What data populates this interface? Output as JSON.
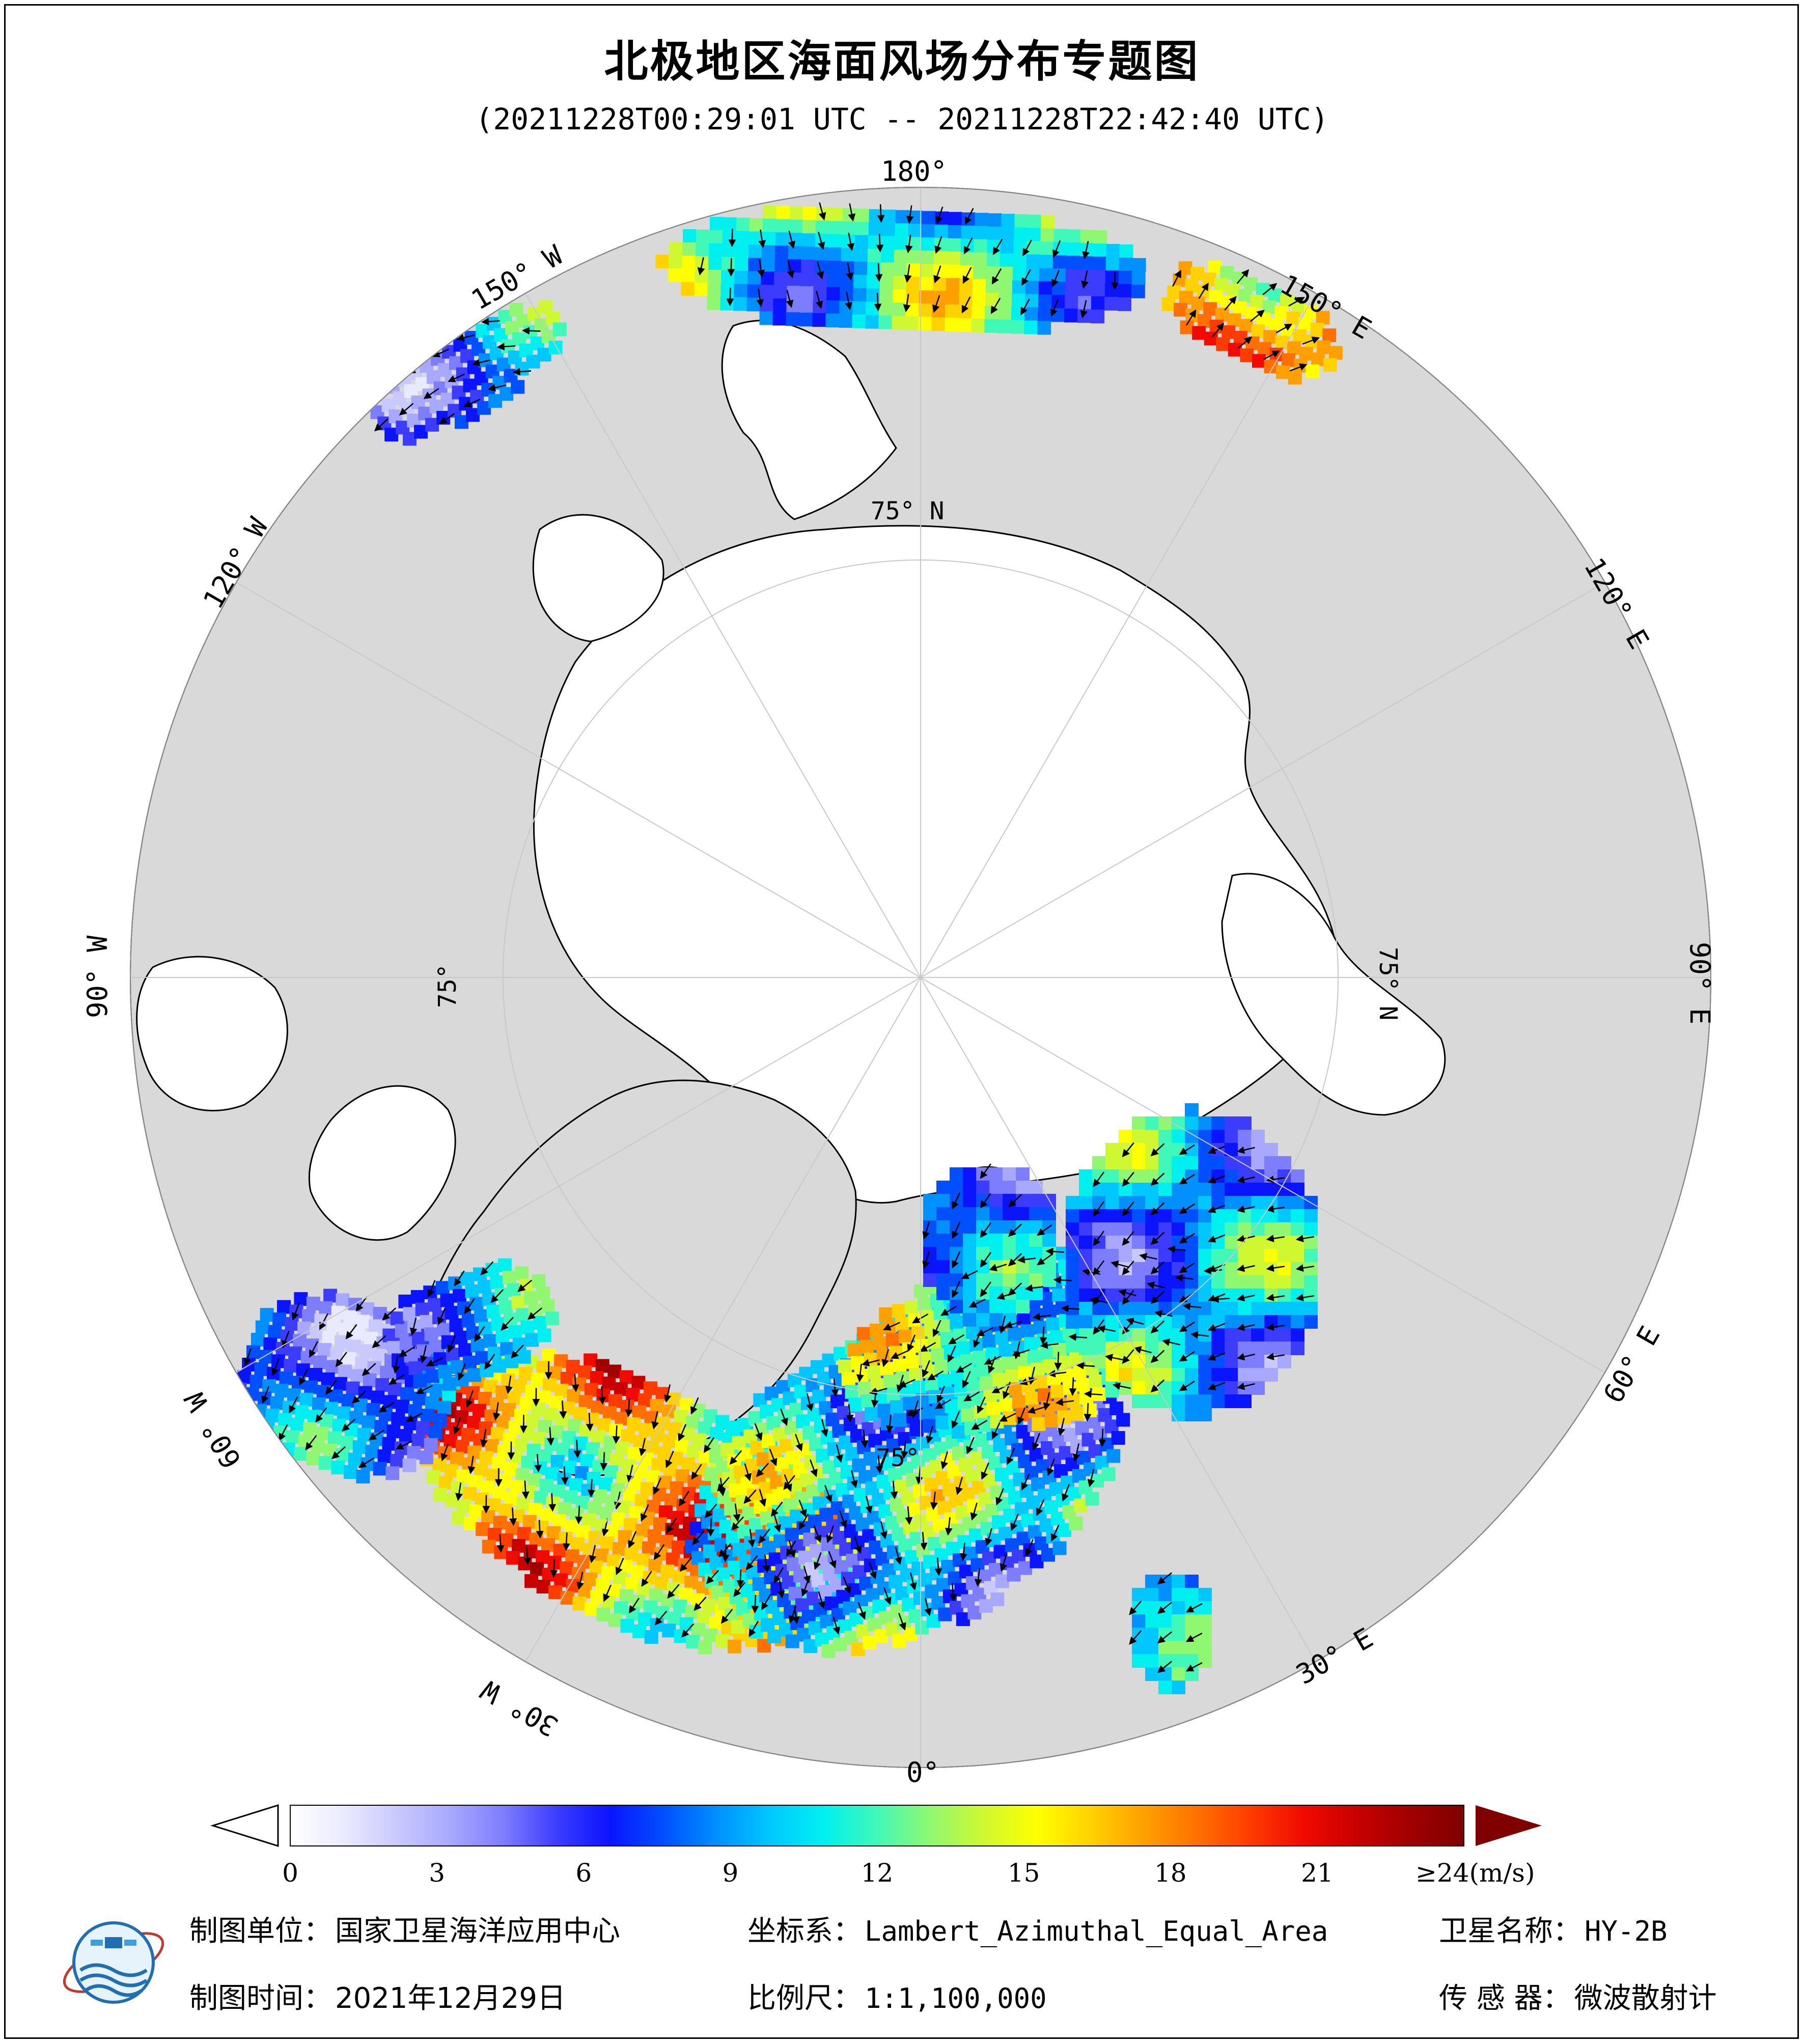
{
  "header": {
    "title": "北极地区海面风场分布专题图",
    "subtitle": "(20211228T00:29:01 UTC -- 20211228T22:42:40 UTC)"
  },
  "map": {
    "projection": "Lambert_Azimuthal_Equal_Area",
    "colors": {
      "land": "#d9d9d9",
      "ice": "#ffffff",
      "coast": "#000000",
      "grid": "#c8c8c8"
    },
    "lon_labels": [
      "180°",
      "150° E",
      "120° E",
      "90° E",
      "60° E",
      "30° E",
      "0°",
      "30° W",
      "60° W",
      "90° W",
      "120° W",
      "150° W"
    ],
    "lat_labels": [
      "75° N",
      "75° N",
      "75°",
      "75°"
    ]
  },
  "colorbar": {
    "unit_label": "≥24(m/s)",
    "ticks": [
      "0",
      "3",
      "6",
      "9",
      "12",
      "15",
      "18",
      "21"
    ],
    "tick_values": [
      0,
      3,
      6,
      9,
      12,
      15,
      18,
      21
    ],
    "range": [
      0,
      24
    ],
    "colors": [
      "#ffffff",
      "#eaeaff",
      "#c9c9ff",
      "#a8a8ff",
      "#7d7dff",
      "#3c3cff",
      "#0a14ff",
      "#0050ff",
      "#0090ff",
      "#00c8ff",
      "#00f0f0",
      "#40f8b8",
      "#90f870",
      "#d0f830",
      "#ffff00",
      "#ffd200",
      "#ffa000",
      "#ff7000",
      "#ff3c00",
      "#f00a00",
      "#c80000",
      "#a00000",
      "#800000"
    ]
  },
  "footer": {
    "unit_label": "制图单位：",
    "unit_value": "国家卫星海洋应用中心",
    "crs_label": "坐标系：",
    "crs_value": "Lambert_Azimuthal_Equal_Area",
    "satellite_label": "卫星名称：",
    "satellite_value": "HY-2B",
    "date_label": "制图时间：",
    "date_value": "2021年12月29日",
    "scale_label": "比例尺：",
    "scale_value": "1:1,100,000",
    "sensor_label": "传 感 器：",
    "sensor_value": "微波散射计"
  }
}
